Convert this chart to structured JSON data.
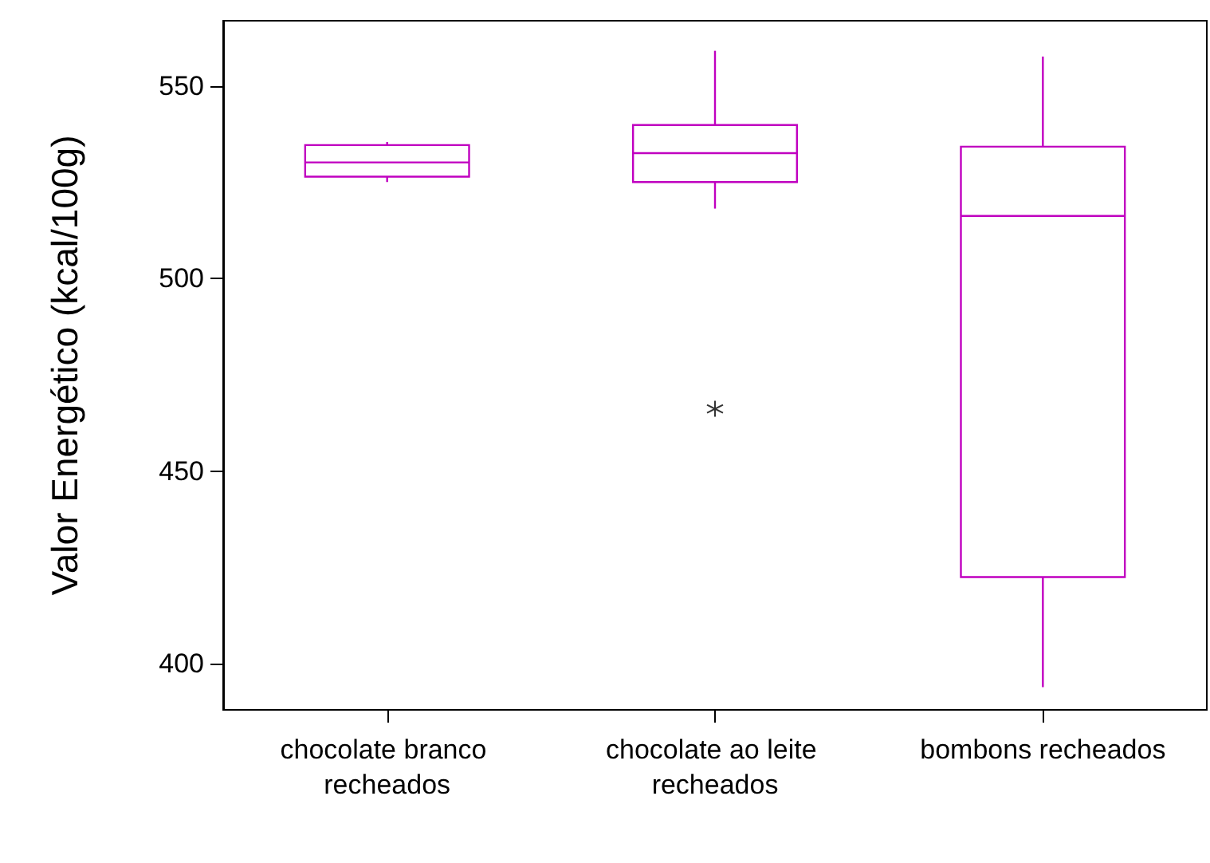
{
  "chart_data": {
    "type": "box",
    "ylabel": "Valor Energético (kcal/100g)",
    "categories": [
      "chocolate branco recheados",
      "chocolate ao leite recheados",
      "bombons recheados"
    ],
    "series": [
      {
        "color": "#c000c0",
        "boxes": [
          {
            "low": 525.1,
            "q1": 526.5,
            "median": 530.2,
            "q3": 534.7,
            "high": 535.5
          },
          {
            "low": 518.2,
            "q1": 525.1,
            "median": 532.6,
            "q3": 539.9,
            "high": 559.2,
            "outliers": [
              466.2
            ]
          },
          {
            "low": 393.9,
            "q1": 422.5,
            "median": 516.3,
            "q3": 534.3,
            "high": 557.7
          }
        ]
      }
    ],
    "ylim": [
      388,
      567
    ],
    "yticks": [
      400,
      450,
      500,
      550
    ],
    "grid": false
  }
}
